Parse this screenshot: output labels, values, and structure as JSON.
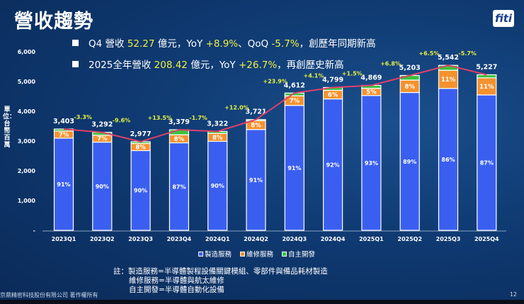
{
  "header": {
    "title": "營收趨勢",
    "logo": "fiti"
  },
  "bullets": [
    {
      "parts": [
        [
          "Q4 營收 ",
          false
        ],
        [
          "52.27",
          true
        ],
        [
          " 億元，YoY ",
          false
        ],
        [
          "+8.9%",
          true
        ],
        [
          "、QoQ ",
          false
        ],
        [
          "-5.7%",
          true
        ],
        [
          "，創歷年同期新高",
          false
        ]
      ]
    },
    {
      "parts": [
        [
          "2025全年營收 ",
          false
        ],
        [
          "208.42",
          true
        ],
        [
          " 億元，YoY ",
          false
        ],
        [
          "+26.7%",
          true
        ],
        [
          "，再創歷史新高",
          false
        ]
      ]
    }
  ],
  "colors": {
    "manufacturing": "#3a5ff0",
    "repair": "#f5922e",
    "own": "#3cc13c",
    "line": "#e0406a",
    "growth": "#e8f040"
  },
  "chart_data": {
    "type": "bar",
    "stacked": true,
    "ylabel": "單位：台幣百萬",
    "ylim": [
      0,
      6000
    ],
    "yticks": [
      "-",
      "1,000",
      "2,000",
      "3,000",
      "4,000",
      "5,000",
      "6,000"
    ],
    "categories": [
      "2023Q1",
      "2023Q2",
      "2023Q3",
      "2023Q4",
      "2024Q1",
      "2024Q2",
      "2024Q3",
      "2024Q4",
      "2025Q1",
      "2025Q2",
      "2025Q3",
      "2025Q4"
    ],
    "totals": [
      3403,
      3292,
      2977,
      3379,
      3322,
      3721,
      4612,
      4799,
      4869,
      5203,
      5542,
      5227
    ],
    "total_labels": [
      "3,403",
      "3,292",
      "2,977",
      "3,379",
      "3,322",
      "3,721",
      "4,612",
      "4,799",
      "4,869",
      "5,203",
      "5,542",
      "5,227"
    ],
    "growth_labels": [
      "-3.3%",
      "-9.6%",
      "+13.5%",
      "-1.7%",
      "+12.0%",
      "+23.9%",
      "+4.1%",
      "+1.5%",
      "+6.8%",
      "+6.5%",
      "-5.7%"
    ],
    "series": [
      {
        "name": "製造服務",
        "share_pct": [
          91,
          90,
          90,
          87,
          90,
          91,
          91,
          92,
          93,
          89,
          86,
          87
        ]
      },
      {
        "name": "維修服務",
        "share_pct": [
          7,
          7,
          8,
          8,
          8,
          8,
          7,
          6,
          5,
          8,
          11,
          11
        ]
      },
      {
        "name": "自主開發",
        "share_pct": [
          2,
          3,
          2,
          5,
          2,
          1,
          2,
          2,
          2,
          3,
          3,
          2
        ]
      }
    ],
    "legend": "bottom"
  },
  "notes": [
    "註：製造服務=半導體製程設備關鍵模組、零部件與備品耗材製造",
    "維修服務=半導體與航太維修",
    "自主開發=半導體自動化設備"
  ],
  "footer": {
    "copyright": "京鼎精密科技股份有限公司 著作權所有",
    "page": "12"
  }
}
